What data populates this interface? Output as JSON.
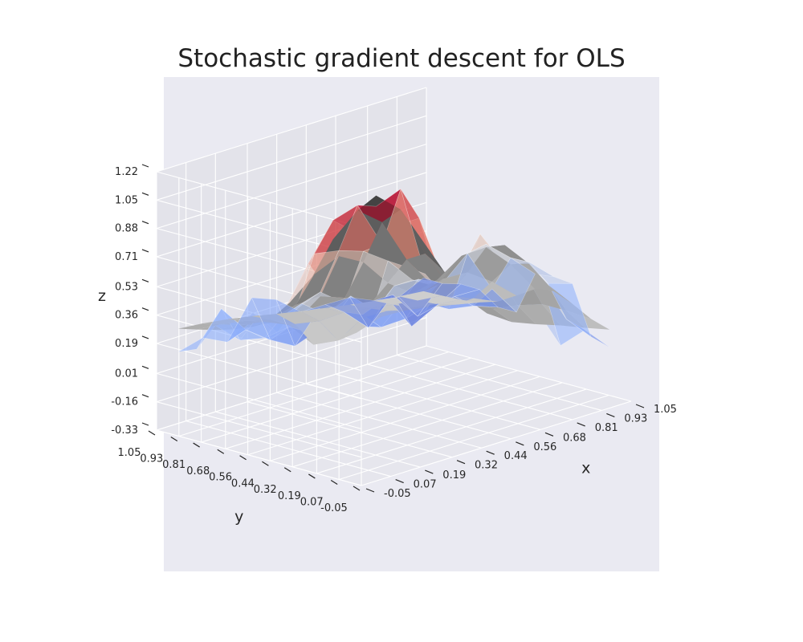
{
  "chart_data": {
    "type": "surface3d",
    "title": "Stochastic gradient descent for OLS",
    "xlabel": "x",
    "ylabel": "y",
    "zlabel": "z",
    "x_ticks": [
      "-0.05",
      "0.07",
      "0.19",
      "0.32",
      "0.44",
      "0.56",
      "0.68",
      "0.81",
      "0.93",
      "1.05"
    ],
    "y_ticks": [
      "-0.05",
      "0.07",
      "0.19",
      "0.32",
      "0.44",
      "0.56",
      "0.68",
      "0.81",
      "0.93",
      "1.05"
    ],
    "z_ticks": [
      "-0.33",
      "-0.16",
      "0.01",
      "0.19",
      "0.36",
      "0.53",
      "0.71",
      "0.88",
      "1.05",
      "1.22"
    ],
    "xlim": [
      -0.05,
      1.05
    ],
    "ylim": [
      -0.05,
      1.05
    ],
    "zlim": [
      -0.33,
      1.22
    ],
    "grid": true,
    "series": [
      {
        "name": "",
        "colormap": "gray",
        "surface_description": "smooth fitted OLS polynomial surface",
        "x": [
          0.0,
          0.1,
          0.2,
          0.3,
          0.4,
          0.5,
          0.6,
          0.7,
          0.8,
          0.9,
          1.0
        ],
        "y": [
          0.0,
          0.1,
          0.2,
          0.3,
          0.4,
          0.5,
          0.6,
          0.7,
          0.8,
          0.9,
          1.0
        ]
      },
      {
        "name": "",
        "colormap": "coolwarm",
        "surface_description": "noisy data surface",
        "x": [
          0.0,
          0.1,
          0.2,
          0.3,
          0.4,
          0.5,
          0.6,
          0.7,
          0.8,
          0.9,
          1.0
        ],
        "y": [
          0.0,
          0.1,
          0.2,
          0.3,
          0.4,
          0.5,
          0.6,
          0.7,
          0.8,
          0.9,
          1.0
        ]
      }
    ],
    "colors": {
      "pane": "#eaeaf2",
      "grid": "#ffffff",
      "text": "#262626"
    }
  }
}
